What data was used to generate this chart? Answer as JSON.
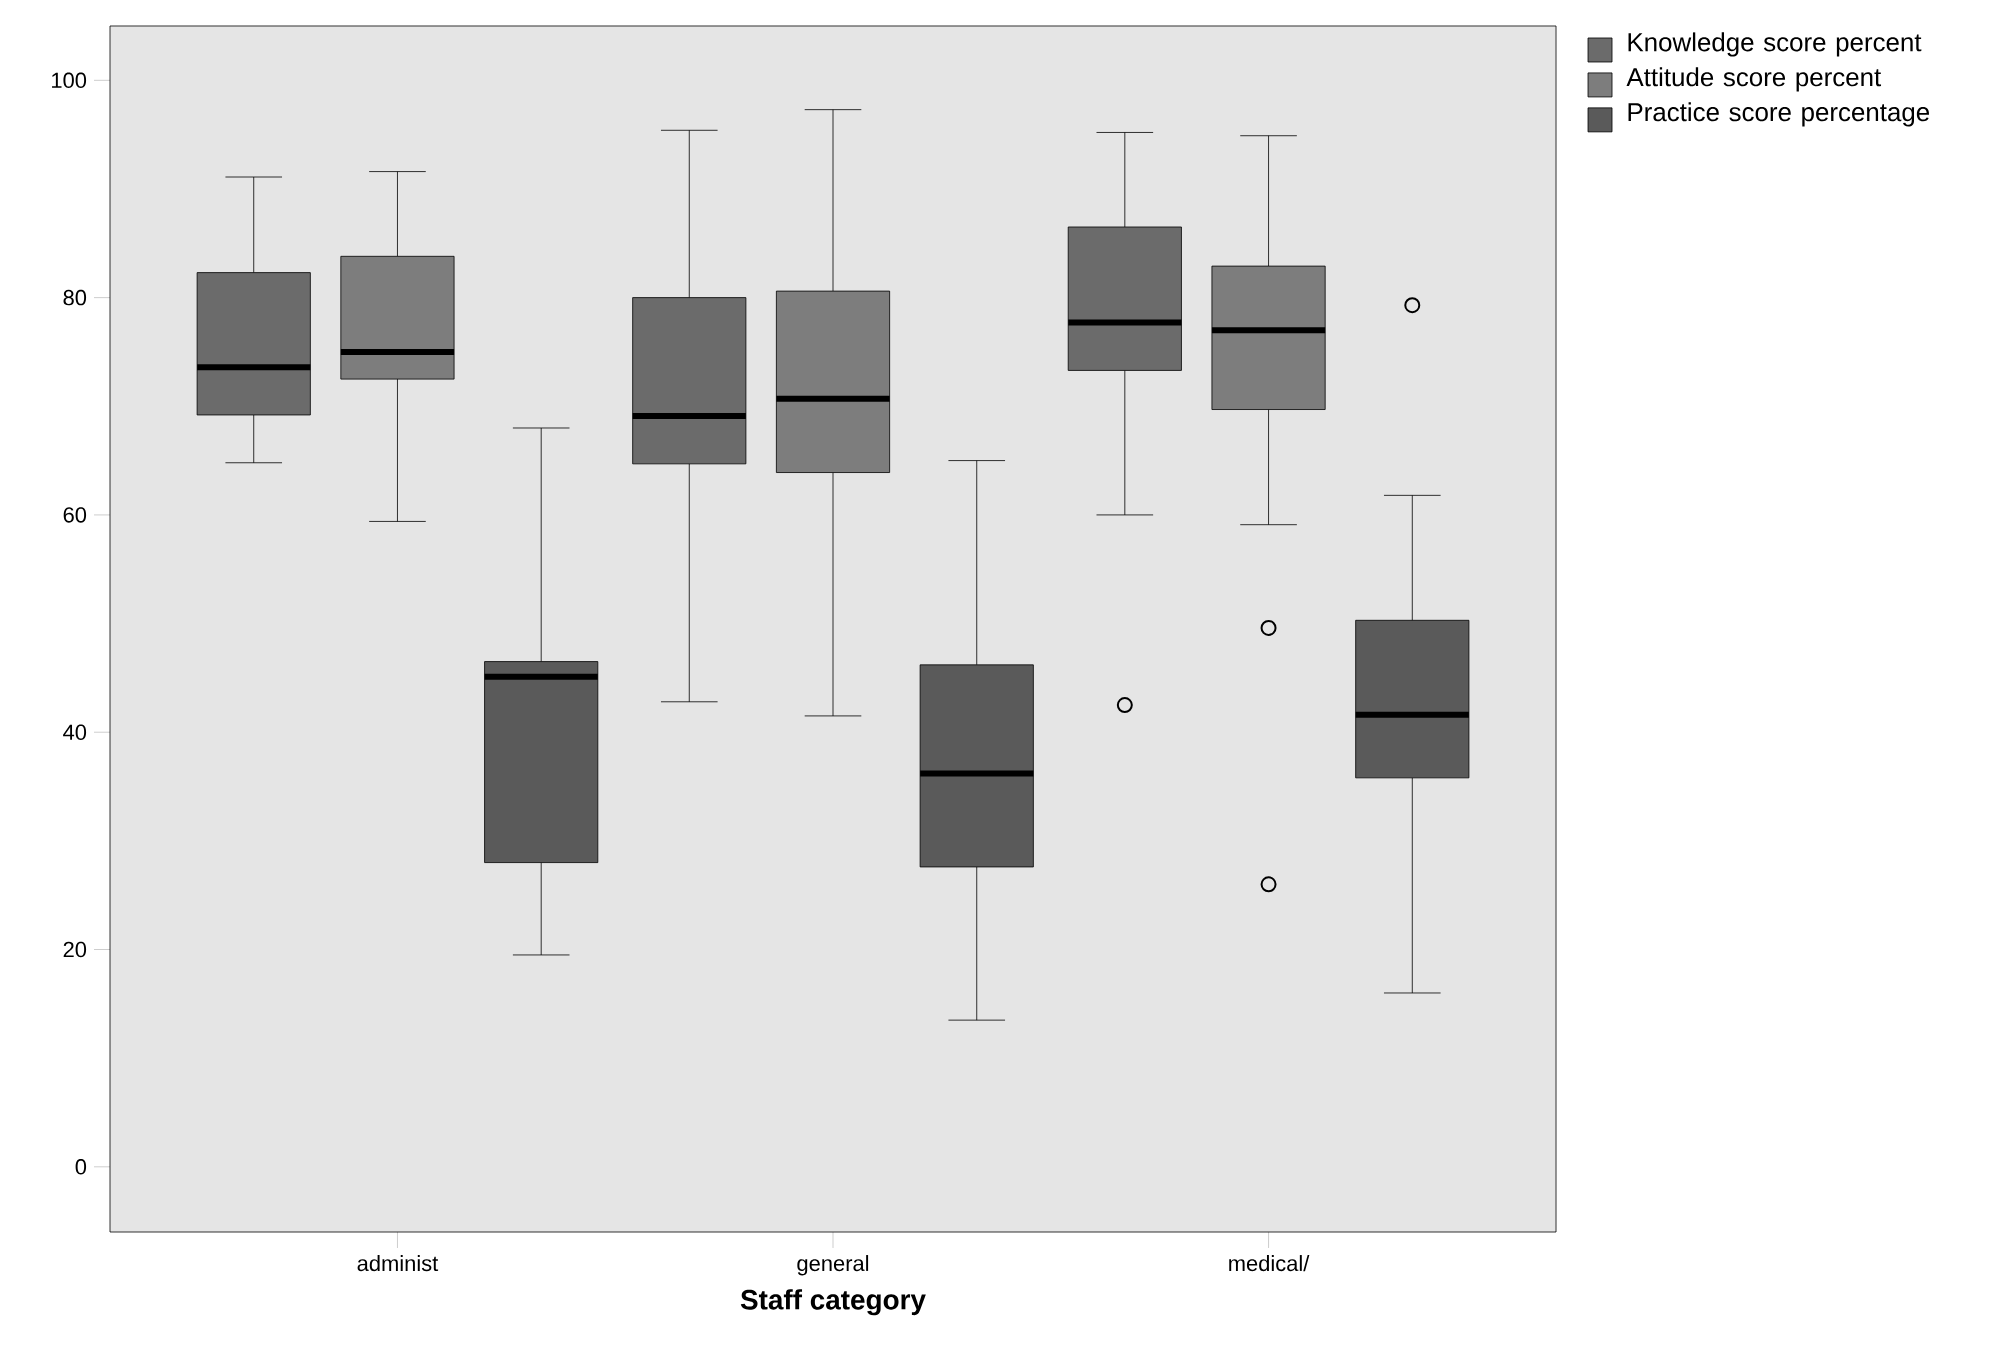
{
  "chart_data": {
    "type": "box",
    "xlabel": "Staff category",
    "categories": [
      "administ",
      "general",
      "medical/"
    ],
    "ylim": [
      -6,
      105
    ],
    "yticks": [
      0,
      20,
      40,
      60,
      80,
      100
    ],
    "legend": "right",
    "series": [
      {
        "name": "Knowledge score percent",
        "color": "#6b6b6b",
        "boxes": [
          {
            "low": 64.8,
            "q1": 69.2,
            "median": 73.6,
            "q3": 82.3,
            "high": 91.1
          },
          {
            "low": 42.8,
            "q1": 64.7,
            "median": 69.1,
            "q3": 80.0,
            "high": 95.4
          },
          {
            "low": 60.0,
            "q1": 73.3,
            "median": 77.7,
            "q3": 86.5,
            "high": 95.2,
            "outliers": [
              42.5
            ]
          }
        ]
      },
      {
        "name": "Attitude score percent",
        "color": "#7d7d7d",
        "boxes": [
          {
            "low": 59.4,
            "q1": 72.5,
            "median": 75.0,
            "q3": 83.8,
            "high": 91.6
          },
          {
            "low": 41.5,
            "q1": 63.9,
            "median": 70.7,
            "q3": 80.6,
            "high": 97.3
          },
          {
            "low": 59.1,
            "q1": 69.7,
            "median": 77.0,
            "q3": 82.9,
            "high": 94.9,
            "outliers": [
              49.6,
              26.0
            ]
          }
        ]
      },
      {
        "name": "Practice score percentage",
        "color": "#5a5a5a",
        "boxes": [
          {
            "low": 19.5,
            "q1": 28.0,
            "median": 45.1,
            "q3": 46.5,
            "high": 68.0
          },
          {
            "low": 13.5,
            "q1": 27.6,
            "median": 36.2,
            "q3": 46.2,
            "high": 65.0
          },
          {
            "low": 16.0,
            "q1": 35.8,
            "median": 41.6,
            "q3": 50.3,
            "high": 61.8,
            "outliers": [
              79.3
            ]
          }
        ]
      }
    ]
  }
}
